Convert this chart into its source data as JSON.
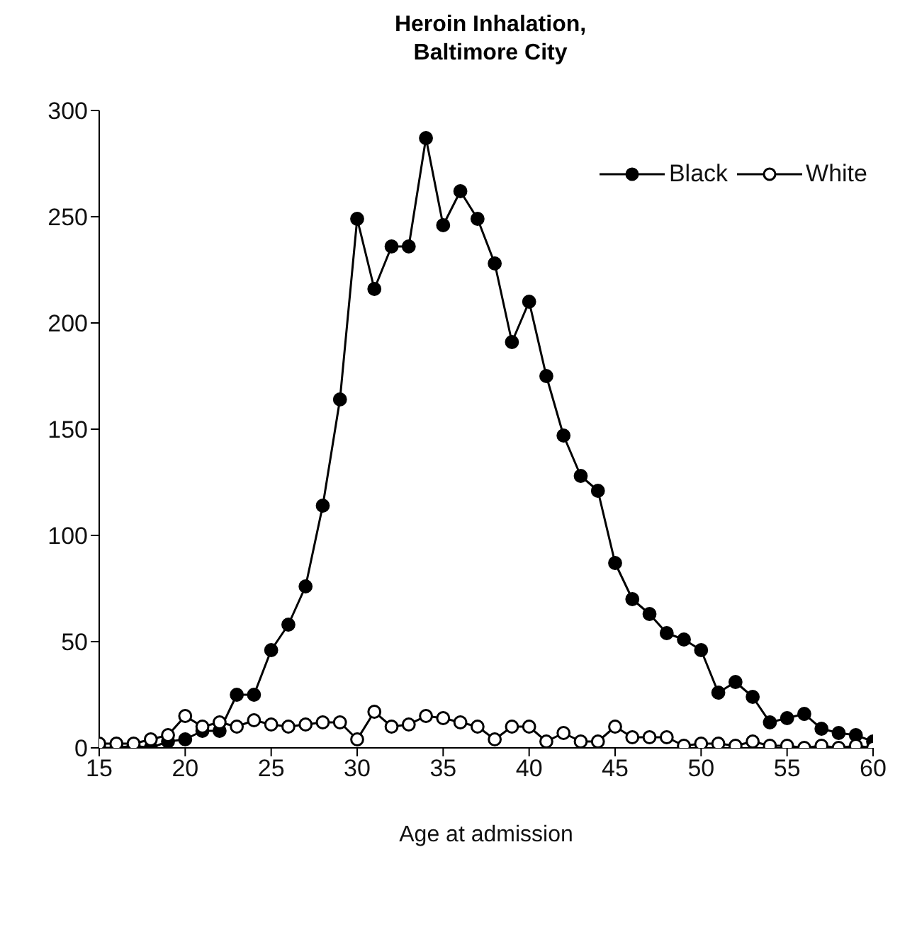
{
  "chart_data": {
    "type": "line",
    "title": "Heroin Inhalation, Baltimore City",
    "xlabel": "Age at admission",
    "x": [
      15,
      16,
      17,
      18,
      19,
      20,
      21,
      22,
      23,
      24,
      25,
      26,
      27,
      28,
      29,
      30,
      31,
      32,
      33,
      34,
      35,
      36,
      37,
      38,
      39,
      40,
      41,
      42,
      43,
      44,
      45,
      46,
      47,
      48,
      49,
      50,
      51,
      52,
      53,
      54,
      55,
      56,
      57,
      58,
      59,
      60
    ],
    "series": [
      {
        "name": "Black",
        "color": "#000000",
        "values": [
          0,
          0,
          1,
          0,
          3,
          4,
          8,
          8,
          25,
          25,
          46,
          58,
          76,
          114,
          164,
          249,
          216,
          236,
          236,
          287,
          246,
          262,
          249,
          228,
          191,
          210,
          175,
          147,
          128,
          121,
          87,
          70,
          63,
          54,
          51,
          46,
          26,
          31,
          24,
          12,
          14,
          16,
          9,
          7,
          6,
          3
        ]
      },
      {
        "name": "White",
        "color": "#ffffff",
        "values": [
          2,
          2,
          2,
          4,
          6,
          15,
          10,
          12,
          10,
          13,
          11,
          10,
          11,
          12,
          12,
          4,
          17,
          10,
          11,
          15,
          14,
          12,
          10,
          4,
          10,
          10,
          3,
          7,
          3,
          3,
          10,
          5,
          5,
          5,
          1,
          2,
          2,
          1,
          3,
          1,
          1,
          0,
          1,
          0,
          1,
          0
        ]
      }
    ],
    "xlim": [
      15,
      60
    ],
    "xticks": [
      15,
      20,
      25,
      30,
      35,
      40,
      45,
      50,
      55,
      60
    ],
    "ylim": [
      0,
      300
    ],
    "yticks": [
      0,
      50,
      100,
      150,
      200,
      250,
      300
    ],
    "legend": "top right",
    "marker": "circle",
    "line_style": "solid"
  }
}
